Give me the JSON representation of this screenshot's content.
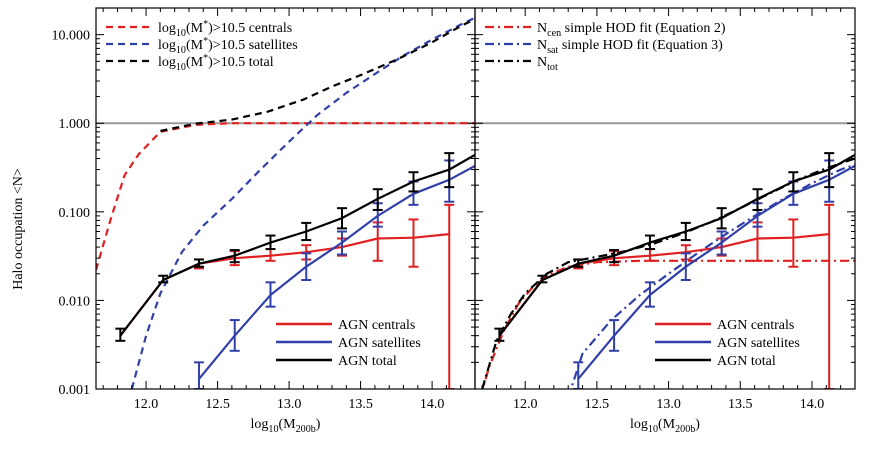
{
  "ylabel": "Halo occupation  <N>",
  "chart_data": [
    {
      "type": "line",
      "panel": "left",
      "xlabel": "log10(M200b)",
      "ylabel": "Halo occupation  <N>",
      "xlim": [
        11.65,
        14.3
      ],
      "ylim": [
        0.001,
        20
      ],
      "yscale": "log",
      "x_ticks": [
        "12.0",
        "12.5",
        "13.0",
        "13.5",
        "14.0"
      ],
      "y_ticks": [
        "0.001",
        "0.010",
        "0.100",
        "1.000",
        "10.000"
      ],
      "reference_line": {
        "y": 1.0,
        "color": "#999999"
      },
      "legend_top": [
        {
          "label": "log10(M*)>10.5 centrals",
          "color": "#e02020",
          "style": "dashed"
        },
        {
          "label": "log10(M*)>10.5 satellites",
          "color": "#3040a8",
          "style": "dashed"
        },
        {
          "label": "log10(M*)>10.5 total",
          "color": "#000000",
          "style": "dashed"
        }
      ],
      "legend_bottom": [
        {
          "label": "AGN centrals",
          "color": "#e02020",
          "style": "solid"
        },
        {
          "label": "AGN satellites",
          "color": "#3040a8",
          "style": "solid"
        },
        {
          "label": "AGN total",
          "color": "#000000",
          "style": "solid"
        }
      ],
      "series": [
        {
          "name": "log10(M*)>10.5 centrals",
          "color": "#e02020",
          "style": "dashed",
          "points": [
            [
              11.65,
              0.022
            ],
            [
              11.75,
              0.08
            ],
            [
              11.85,
              0.26
            ],
            [
              11.95,
              0.45
            ],
            [
              12.1,
              0.8
            ],
            [
              12.35,
              0.96
            ],
            [
              12.6,
              1.0
            ],
            [
              13.0,
              1.0
            ],
            [
              13.5,
              1.0
            ],
            [
              14.0,
              1.0
            ],
            [
              14.3,
              1.0
            ]
          ]
        },
        {
          "name": "log10(M*)>10.5 satellites",
          "color": "#3040a8",
          "style": "dashed",
          "points": [
            [
              11.9,
              0.001
            ],
            [
              12.0,
              0.004
            ],
            [
              12.1,
              0.012
            ],
            [
              12.25,
              0.035
            ],
            [
              12.4,
              0.07
            ],
            [
              12.6,
              0.14
            ],
            [
              12.8,
              0.3
            ],
            [
              13.0,
              0.62
            ],
            [
              13.2,
              1.25
            ],
            [
              13.4,
              2.2
            ],
            [
              13.6,
              3.6
            ],
            [
              13.8,
              5.8
            ],
            [
              14.0,
              8.8
            ],
            [
              14.2,
              13.0
            ],
            [
              14.3,
              15.5
            ]
          ]
        },
        {
          "name": "log10(M*)>10.5 total",
          "color": "#000000",
          "style": "dashed",
          "points": [
            [
              12.1,
              0.82
            ],
            [
              12.35,
              0.99
            ],
            [
              12.6,
              1.1
            ],
            [
              12.85,
              1.35
            ],
            [
              13.1,
              1.85
            ],
            [
              13.3,
              2.6
            ],
            [
              13.5,
              3.5
            ],
            [
              13.75,
              5.2
            ],
            [
              14.0,
              8.2
            ],
            [
              14.2,
              12.5
            ],
            [
              14.3,
              15.0
            ]
          ]
        },
        {
          "name": "AGN centrals",
          "color": "#e02020",
          "style": "solid",
          "points": [
            [
              11.82,
              0.004
            ],
            [
              12.12,
              0.017
            ],
            [
              12.37,
              0.026
            ],
            [
              12.62,
              0.03
            ],
            [
              12.87,
              0.032
            ],
            [
              13.12,
              0.035
            ],
            [
              13.37,
              0.04
            ],
            [
              13.62,
              0.05
            ],
            [
              13.87,
              0.051
            ],
            [
              14.12,
              0.056
            ]
          ],
          "errors": [
            [
              12.37,
              0.023,
              0.029
            ],
            [
              12.62,
              0.025,
              0.036
            ],
            [
              12.87,
              0.028,
              0.038
            ],
            [
              13.12,
              0.029,
              0.042
            ],
            [
              13.37,
              0.032,
              0.05
            ],
            [
              13.62,
              0.028,
              0.076
            ],
            [
              13.87,
              0.024,
              0.082
            ],
            [
              14.12,
              0.001,
              0.12
            ]
          ]
        },
        {
          "name": "AGN satellites",
          "color": "#3040a8",
          "style": "solid",
          "points": [
            [
              12.37,
              0.0013
            ],
            [
              12.62,
              0.004
            ],
            [
              12.87,
              0.0115
            ],
            [
              13.12,
              0.024
            ],
            [
              13.37,
              0.045
            ],
            [
              13.62,
              0.09
            ],
            [
              13.87,
              0.16
            ],
            [
              14.12,
              0.23
            ],
            [
              14.3,
              0.33
            ]
          ],
          "errors": [
            [
              12.37,
              0.001,
              0.002
            ],
            [
              12.62,
              0.0027,
              0.006
            ],
            [
              12.87,
              0.0085,
              0.016
            ],
            [
              13.12,
              0.017,
              0.034
            ],
            [
              13.37,
              0.033,
              0.06
            ],
            [
              13.62,
              0.068,
              0.125
            ],
            [
              13.87,
              0.12,
              0.22
            ],
            [
              14.12,
              0.13,
              0.38
            ]
          ]
        },
        {
          "name": "AGN total",
          "color": "#000000",
          "style": "solid",
          "points": [
            [
              11.82,
              0.004
            ],
            [
              12.12,
              0.017
            ],
            [
              12.37,
              0.026
            ],
            [
              12.62,
              0.032
            ],
            [
              12.87,
              0.045
            ],
            [
              13.12,
              0.06
            ],
            [
              13.37,
              0.085
            ],
            [
              13.62,
              0.14
            ],
            [
              13.87,
              0.22
            ],
            [
              14.12,
              0.3
            ],
            [
              14.3,
              0.44
            ]
          ],
          "errors": [
            [
              11.82,
              0.0035,
              0.0048
            ],
            [
              12.12,
              0.016,
              0.019
            ],
            [
              12.37,
              0.024,
              0.029
            ],
            [
              12.62,
              0.027,
              0.037
            ],
            [
              12.87,
              0.038,
              0.054
            ],
            [
              13.12,
              0.048,
              0.075
            ],
            [
              13.37,
              0.065,
              0.11
            ],
            [
              13.62,
              0.105,
              0.18
            ],
            [
              13.87,
              0.17,
              0.28
            ],
            [
              14.12,
              0.19,
              0.46
            ]
          ]
        }
      ]
    },
    {
      "type": "line",
      "panel": "right",
      "xlabel": "log10(M200b)",
      "xlim": [
        11.65,
        14.3
      ],
      "ylim": [
        0.001,
        20
      ],
      "yscale": "log",
      "x_ticks": [
        "12.0",
        "12.5",
        "13.0",
        "13.5",
        "14.0"
      ],
      "reference_line": {
        "y": 1.0,
        "color": "#999999"
      },
      "legend_top": [
        {
          "label": "Ncen simple HOD fit (Equation 2)",
          "color": "#e02020",
          "style": "dashdot"
        },
        {
          "label": "Nsat simple HOD fit (Equation 3)",
          "color": "#3040a8",
          "style": "dashdot"
        },
        {
          "label": "Ntot",
          "color": "#000000",
          "style": "dashdot"
        }
      ],
      "legend_bottom": [
        {
          "label": "AGN centrals",
          "color": "#e02020",
          "style": "solid"
        },
        {
          "label": "AGN satellites",
          "color": "#3040a8",
          "style": "solid"
        },
        {
          "label": "AGN total",
          "color": "#000000",
          "style": "solid"
        }
      ],
      "series": [
        {
          "name": "Ncen simple HOD fit (Equation 2)",
          "color": "#e02020",
          "style": "dashdot",
          "points": [
            [
              11.65,
              0.0005
            ],
            [
              11.75,
              0.0018
            ],
            [
              11.85,
              0.0045
            ],
            [
              11.95,
              0.009
            ],
            [
              12.05,
              0.014
            ],
            [
              12.15,
              0.019
            ],
            [
              12.3,
              0.024
            ],
            [
              12.5,
              0.027
            ],
            [
              12.8,
              0.028
            ],
            [
              13.2,
              0.028
            ],
            [
              14.3,
              0.028
            ]
          ]
        },
        {
          "name": "Nsat simple HOD fit (Equation 3)",
          "color": "#3040a8",
          "style": "dashdot",
          "points": [
            [
              12.3,
              0.0008
            ],
            [
              12.4,
              0.0025
            ],
            [
              12.6,
              0.006
            ],
            [
              12.8,
              0.0115
            ],
            [
              13.0,
              0.02
            ],
            [
              13.2,
              0.034
            ],
            [
              13.4,
              0.056
            ],
            [
              13.6,
              0.09
            ],
            [
              13.8,
              0.14
            ],
            [
              14.0,
              0.21
            ],
            [
              14.2,
              0.3
            ],
            [
              14.3,
              0.34
            ]
          ]
        },
        {
          "name": "Ntot",
          "color": "#000000",
          "style": "dashdot",
          "points": [
            [
              11.7,
              0.001
            ],
            [
              11.8,
              0.0035
            ],
            [
              11.9,
              0.007
            ],
            [
              12.0,
              0.012
            ],
            [
              12.15,
              0.02
            ],
            [
              12.3,
              0.027
            ],
            [
              12.5,
              0.031
            ],
            [
              12.7,
              0.036
            ],
            [
              12.9,
              0.044
            ],
            [
              13.1,
              0.057
            ],
            [
              13.3,
              0.077
            ],
            [
              13.5,
              0.11
            ],
            [
              13.7,
              0.16
            ],
            [
              13.9,
              0.23
            ],
            [
              14.1,
              0.31
            ],
            [
              14.3,
              0.4
            ]
          ]
        },
        {
          "name": "AGN centrals",
          "color": "#e02020",
          "style": "solid",
          "points": [
            [
              11.82,
              0.004
            ],
            [
              12.12,
              0.017
            ],
            [
              12.37,
              0.026
            ],
            [
              12.62,
              0.03
            ],
            [
              12.87,
              0.032
            ],
            [
              13.12,
              0.035
            ],
            [
              13.37,
              0.04
            ],
            [
              13.62,
              0.05
            ],
            [
              13.87,
              0.051
            ],
            [
              14.12,
              0.056
            ]
          ],
          "errors": [
            [
              12.37,
              0.023,
              0.029
            ],
            [
              12.62,
              0.025,
              0.036
            ],
            [
              12.87,
              0.028,
              0.038
            ],
            [
              13.12,
              0.029,
              0.042
            ],
            [
              13.37,
              0.032,
              0.05
            ],
            [
              13.62,
              0.028,
              0.076
            ],
            [
              13.87,
              0.024,
              0.082
            ],
            [
              14.12,
              0.001,
              0.12
            ]
          ]
        },
        {
          "name": "AGN satellites",
          "color": "#3040a8",
          "style": "solid",
          "points": [
            [
              12.37,
              0.0013
            ],
            [
              12.62,
              0.004
            ],
            [
              12.87,
              0.0115
            ],
            [
              13.12,
              0.024
            ],
            [
              13.37,
              0.045
            ],
            [
              13.62,
              0.09
            ],
            [
              13.87,
              0.16
            ],
            [
              14.12,
              0.23
            ],
            [
              14.3,
              0.33
            ]
          ],
          "errors": [
            [
              12.37,
              0.001,
              0.002
            ],
            [
              12.62,
              0.0027,
              0.006
            ],
            [
              12.87,
              0.0085,
              0.016
            ],
            [
              13.12,
              0.017,
              0.034
            ],
            [
              13.37,
              0.033,
              0.06
            ],
            [
              13.62,
              0.068,
              0.125
            ],
            [
              13.87,
              0.12,
              0.22
            ],
            [
              14.12,
              0.13,
              0.38
            ]
          ]
        },
        {
          "name": "AGN total",
          "color": "#000000",
          "style": "solid",
          "points": [
            [
              11.82,
              0.004
            ],
            [
              12.12,
              0.017
            ],
            [
              12.37,
              0.026
            ],
            [
              12.62,
              0.032
            ],
            [
              12.87,
              0.045
            ],
            [
              13.12,
              0.06
            ],
            [
              13.37,
              0.085
            ],
            [
              13.62,
              0.14
            ],
            [
              13.87,
              0.22
            ],
            [
              14.12,
              0.3
            ],
            [
              14.3,
              0.44
            ]
          ],
          "errors": [
            [
              11.82,
              0.0035,
              0.0048
            ],
            [
              12.12,
              0.016,
              0.019
            ],
            [
              12.37,
              0.024,
              0.029
            ],
            [
              12.62,
              0.027,
              0.037
            ],
            [
              12.87,
              0.038,
              0.054
            ],
            [
              13.12,
              0.048,
              0.075
            ],
            [
              13.37,
              0.065,
              0.11
            ],
            [
              13.62,
              0.105,
              0.18
            ],
            [
              13.87,
              0.17,
              0.28
            ],
            [
              14.12,
              0.19,
              0.46
            ]
          ]
        }
      ]
    }
  ]
}
